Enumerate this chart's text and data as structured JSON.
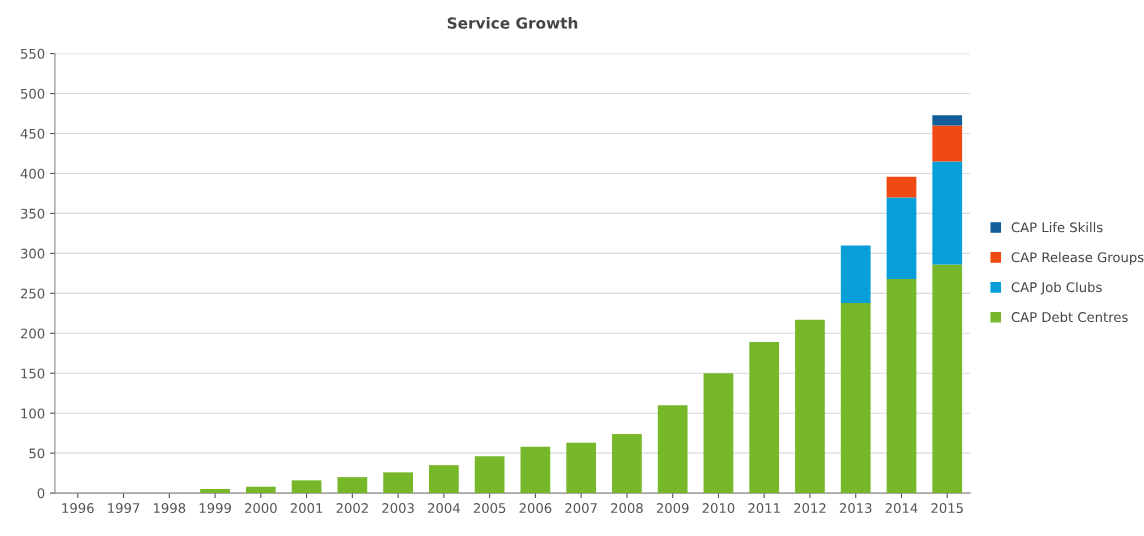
{
  "chart_data": {
    "type": "bar",
    "title": "Service Growth",
    "stacked": true,
    "categories": [
      "1996",
      "1997",
      "1998",
      "1999",
      "2000",
      "2001",
      "2002",
      "2003",
      "2004",
      "2005",
      "2006",
      "2007",
      "2008",
      "2009",
      "2010",
      "2011",
      "2012",
      "2013",
      "2014",
      "2015"
    ],
    "series": [
      {
        "name": "CAP Debt Centres",
        "color": "#77b82a",
        "values": [
          0,
          0,
          0,
          5,
          8,
          16,
          20,
          26,
          35,
          46,
          58,
          63,
          74,
          110,
          150,
          189,
          217,
          238,
          268,
          286
        ]
      },
      {
        "name": "CAP Job Clubs",
        "color": "#069fd8",
        "values": [
          0,
          0,
          0,
          0,
          0,
          0,
          0,
          0,
          0,
          0,
          0,
          0,
          0,
          0,
          0,
          0,
          0,
          72,
          102,
          129
        ]
      },
      {
        "name": "CAP Release Groups",
        "color": "#ee4a12",
        "values": [
          0,
          0,
          0,
          0,
          0,
          0,
          0,
          0,
          0,
          0,
          0,
          0,
          0,
          0,
          0,
          0,
          0,
          0,
          26,
          45
        ]
      },
      {
        "name": "CAP Life Skills",
        "color": "#115e9a",
        "values": [
          0,
          0,
          0,
          0,
          0,
          0,
          0,
          0,
          0,
          0,
          0,
          0,
          0,
          0,
          0,
          0,
          0,
          0,
          0,
          13
        ]
      }
    ],
    "ylim": [
      0,
      550
    ],
    "yticks": [
      0,
      50,
      100,
      150,
      200,
      250,
      300,
      350,
      400,
      450,
      500,
      550
    ],
    "grid": "y",
    "legend": "right"
  }
}
